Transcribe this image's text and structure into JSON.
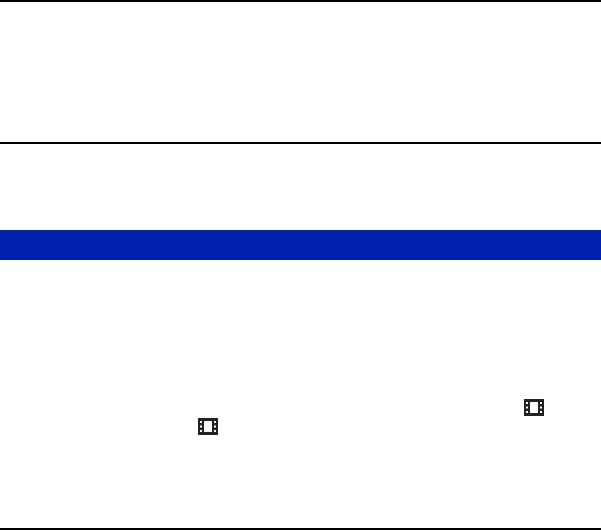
{
  "colors": {
    "rule": "#000000",
    "section_bar": "#0020AF",
    "icon": "#222222"
  },
  "icons": [
    "movie-film-icon",
    "movie-film-icon"
  ]
}
